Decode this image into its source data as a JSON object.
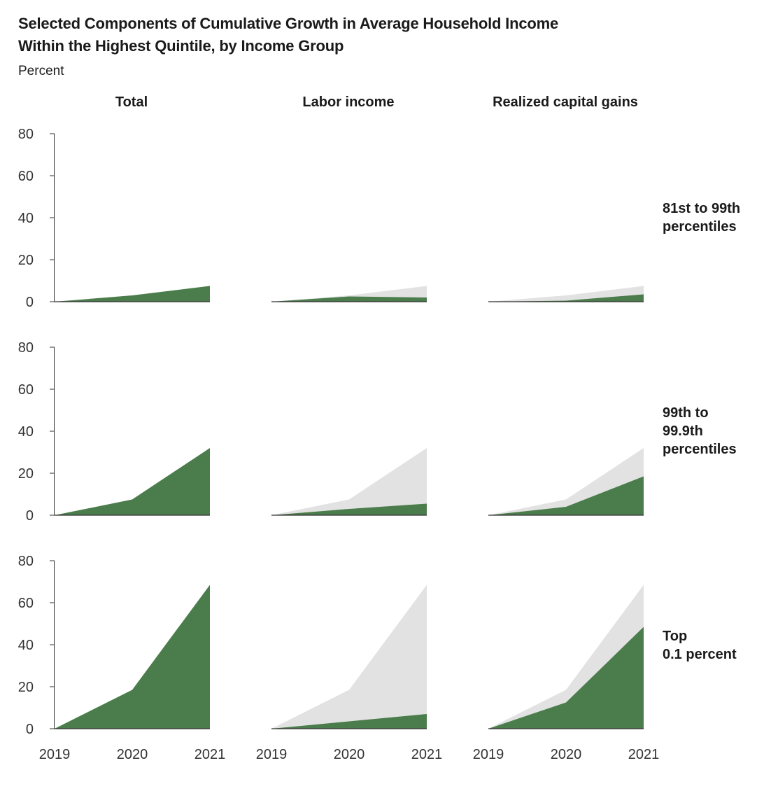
{
  "title_line1": "Selected Components of Cumulative Growth in Average Household Income",
  "title_line2": "Within the Highest Quintile, by Income Group",
  "unit_label": "Percent",
  "columns": [
    "Total",
    "Labor income",
    "Realized capital gains"
  ],
  "rows": [
    {
      "label_lines": [
        "81st to 99th",
        "percentiles"
      ]
    },
    {
      "label_lines": [
        "99th to",
        "99.9th",
        "percentiles"
      ]
    },
    {
      "label_lines": [
        "Top",
        "0.1 percent"
      ]
    }
  ],
  "colors": {
    "component": "#4a7d4b",
    "total_background": "#e2e2e2",
    "axis": "#333333"
  },
  "chart_data": {
    "type": "area",
    "x": [
      "2019",
      "2020",
      "2021"
    ],
    "ylim": [
      0,
      80
    ],
    "yticks": [
      0,
      20,
      40,
      60,
      80
    ],
    "ylabel": "Percent",
    "panels": [
      {
        "row": "81st to 99th percentiles",
        "column": "Total",
        "total": [
          0,
          3,
          7.5
        ],
        "component": [
          0,
          3,
          7.5
        ]
      },
      {
        "row": "81st to 99th percentiles",
        "column": "Labor income",
        "total": [
          0,
          3,
          7.5
        ],
        "component": [
          0,
          2.5,
          2
        ]
      },
      {
        "row": "81st to 99th percentiles",
        "column": "Realized capital gains",
        "total": [
          0,
          3,
          7.5
        ],
        "component": [
          0,
          0.5,
          3.5
        ]
      },
      {
        "row": "99th to 99.9th percentiles",
        "column": "Total",
        "total": [
          0,
          7.5,
          32
        ],
        "component": [
          0,
          7.5,
          32
        ]
      },
      {
        "row": "99th to 99.9th percentiles",
        "column": "Labor income",
        "total": [
          0,
          7.5,
          32
        ],
        "component": [
          0,
          3,
          5.5
        ]
      },
      {
        "row": "99th to 99.9th percentiles",
        "column": "Realized capital gains",
        "total": [
          0,
          7.5,
          32
        ],
        "component": [
          0,
          4,
          18.5
        ]
      },
      {
        "row": "Top 0.1 percent",
        "column": "Total",
        "total": [
          0,
          18.5,
          68.5
        ],
        "component": [
          0,
          18.5,
          68.5
        ]
      },
      {
        "row": "Top 0.1 percent",
        "column": "Labor income",
        "total": [
          0,
          18.5,
          68.5
        ],
        "component": [
          0,
          3.5,
          7
        ]
      },
      {
        "row": "Top 0.1 percent",
        "column": "Realized capital gains",
        "total": [
          0,
          18.5,
          68.5
        ],
        "component": [
          0,
          12.5,
          48.5
        ]
      }
    ]
  }
}
